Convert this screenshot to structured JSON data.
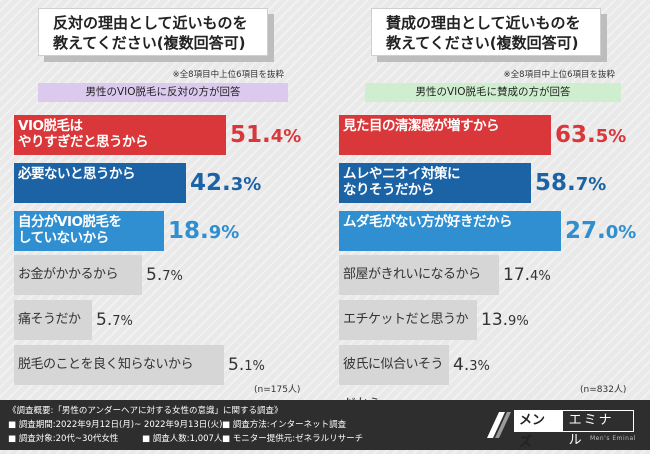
{
  "chart_data": [
    {
      "type": "bar",
      "panel": "left",
      "title": "反対の理由として近いものを\n教えてください(複数回答可)",
      "note": "※全8項目中上位6項目を抜粋",
      "subtitle": "男性のVIO脱毛に反対の方が回答",
      "n_label": "(n=175人)",
      "categories": [
        "VIO脱毛は\nやりすぎだと思うから",
        "必要ないと思うから",
        "自分がVIO脱毛を\nしていないから",
        "お金がかかるから",
        "痛そうだから",
        "脱毛のことを良く知らないから"
      ],
      "values": [
        51.4,
        42.3,
        18.9,
        5.7,
        5.7,
        5.1
      ],
      "value_labels": [
        {
          "int": "51.",
          "dec": "4%"
        },
        {
          "int": "42.",
          "dec": "3%"
        },
        {
          "int": "18.",
          "dec": "9%"
        },
        {
          "int": "5.",
          "dec": "7%"
        },
        {
          "int": "5.",
          "dec": "7%"
        },
        {
          "int": "5.",
          "dec": "1%"
        }
      ],
      "colors": [
        "#d9373a",
        "#1c63a6",
        "#2f8fd0",
        "#d6d6d6",
        "#d6d6d6",
        "#d6d6d6"
      ],
      "value_colors": [
        "#d9373a",
        "#1c63a6",
        "#2f8fd0",
        "#333333",
        "#333333",
        "#333333"
      ]
    },
    {
      "type": "bar",
      "panel": "right",
      "title": "賛成の理由として近いものを\n教えてください(複数回答可)",
      "note": "※全8項目中上位6項目を抜粋",
      "subtitle": "男性のVIO脱毛に賛成の方が回答",
      "n_label": "(n=832人)",
      "categories": [
        "見た目の清潔感が増すから",
        "ムレやニオイ対策に\nなりそうだから",
        "ムダ毛がない方が好きだから",
        "部屋がきれいになるから",
        "エチケットだと思うから",
        "彼氏に似合いそうだから"
      ],
      "values": [
        63.5,
        58.7,
        27.0,
        17.4,
        13.9,
        4.3
      ],
      "value_labels": [
        {
          "int": "63.",
          "dec": "5%"
        },
        {
          "int": "58.",
          "dec": "7%"
        },
        {
          "int": "27.",
          "dec": "0%"
        },
        {
          "int": "17.",
          "dec": "4%"
        },
        {
          "int": "13.",
          "dec": "9%"
        },
        {
          "int": "4.",
          "dec": "3%"
        }
      ],
      "colors": [
        "#d9373a",
        "#1c63a6",
        "#2f8fd0",
        "#d6d6d6",
        "#d6d6d6",
        "#d6d6d6"
      ],
      "value_colors": [
        "#d9373a",
        "#1c63a6",
        "#2f8fd0",
        "#333333",
        "#333333",
        "#333333"
      ]
    }
  ],
  "footer": {
    "survey_title": "《調査概要:「男性のアンダーヘアに対する女性の意識」に関する調査》",
    "period": "■ 調査期間:2022年9月12日(月)~ 2022年9月13日(火)",
    "method": "■ 調査方法:インターネット調査",
    "target": "■ 調査対象:20代~30代女性",
    "count": "■ 調査人数:1,007人",
    "provider": "■ モニター提供元:ゼネラルリサーチ"
  },
  "logo": {
    "part_a": "メンズ",
    "part_b": "エミナル",
    "sub": "Men's Eminal"
  }
}
